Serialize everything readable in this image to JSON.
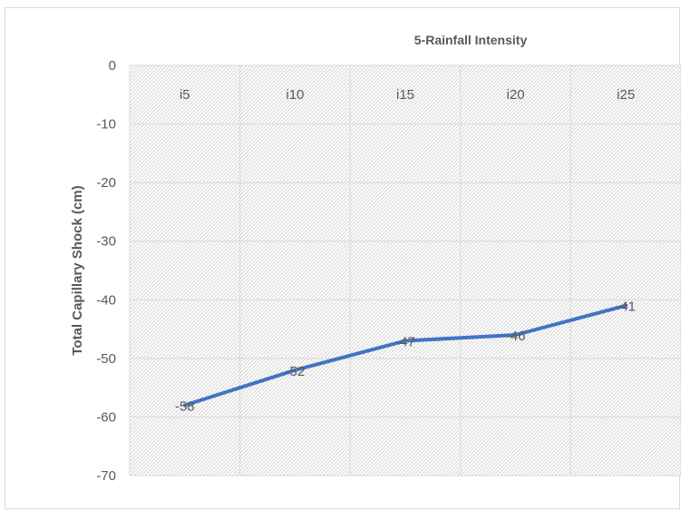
{
  "chart_data": {
    "type": "line",
    "title": "5-Rainfall Intensity",
    "xlabel": "",
    "ylabel": "Total Capillary Shock (cm)",
    "categories": [
      "i5",
      "i10",
      "i15",
      "i20",
      "i25"
    ],
    "series": [
      {
        "values": [
          -58,
          -52,
          -47,
          -46,
          -41
        ],
        "color": "#4472C4"
      }
    ],
    "data_labels": [
      "-58",
      "-52",
      "-47",
      "-46",
      "-41"
    ],
    "ylim": [
      -70,
      0
    ],
    "yticks": [
      "0",
      "-10",
      "-20",
      "-30",
      "-40",
      "-50",
      "-60",
      "-70"
    ],
    "x_axis_position": "top",
    "grid": true,
    "plot_fill": "hatched"
  }
}
